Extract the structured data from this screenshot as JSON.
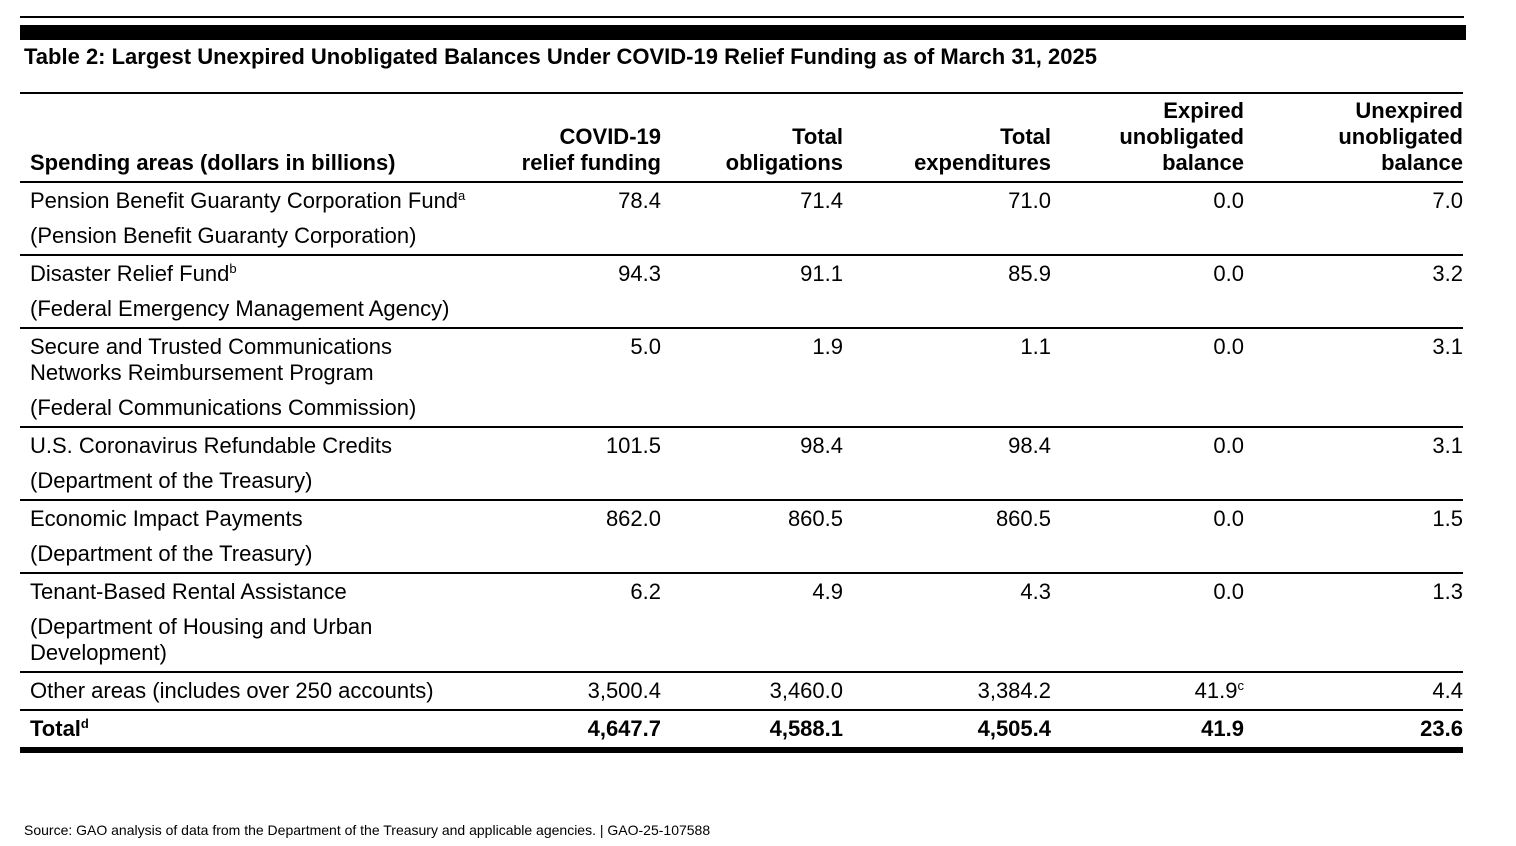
{
  "title": "Table 2: Largest Unexpired Unobligated Balances Under COVID-19 Relief Funding as of March 31, 2025",
  "headers": {
    "spending_areas": "Spending areas (dollars in billions)",
    "relief_funding": [
      "COVID-19",
      "relief funding"
    ],
    "obligations": [
      "Total",
      "obligations"
    ],
    "expenditures": [
      "Total",
      "expenditures"
    ],
    "expired": [
      "Expired",
      "unobligated",
      "balance"
    ],
    "unexpired": [
      "Unexpired",
      "unobligated",
      "balance"
    ]
  },
  "rows": [
    {
      "name": "Pension Benefit Guaranty Corporation Fund",
      "note": "a",
      "agency": "(Pension Benefit Guaranty Corporation)",
      "relief_funding": "78.4",
      "obligations": "71.4",
      "expenditures": "71.0",
      "expired": "0.0",
      "unexpired": "7.0"
    },
    {
      "name": "Disaster Relief Fund",
      "note": "b",
      "agency": "(Federal Emergency Management Agency)",
      "relief_funding": "94.3",
      "obligations": "91.1",
      "expenditures": "85.9",
      "expired": "0.0",
      "unexpired": "3.2"
    },
    {
      "name": "Secure and Trusted Communications Networks Reimbursement Program",
      "note": "",
      "agency": "(Federal Communications Commission)",
      "relief_funding": "5.0",
      "obligations": "1.9",
      "expenditures": "1.1",
      "expired": "0.0",
      "unexpired": "3.1"
    },
    {
      "name": "U.S. Coronavirus Refundable Credits",
      "note": "",
      "agency": "(Department of the Treasury)",
      "relief_funding": "101.5",
      "obligations": "98.4",
      "expenditures": "98.4",
      "expired": "0.0",
      "unexpired": "3.1"
    },
    {
      "name": "Economic Impact Payments",
      "note": "",
      "agency": "(Department of the Treasury)",
      "relief_funding": "862.0",
      "obligations": "860.5",
      "expenditures": "860.5",
      "expired": "0.0",
      "unexpired": "1.5"
    },
    {
      "name": "Tenant-Based Rental Assistance",
      "note": "",
      "agency": "(Department of Housing and Urban Development)",
      "relief_funding": "6.2",
      "obligations": "4.9",
      "expenditures": "4.3",
      "expired": "0.0",
      "unexpired": "1.3"
    },
    {
      "name": "Other areas (includes over 250 accounts)",
      "note": "",
      "agency": "",
      "relief_funding": "3,500.4",
      "obligations": "3,460.0",
      "expenditures": "3,384.2",
      "expired": "41.9",
      "expired_note": "c",
      "unexpired": "4.4"
    }
  ],
  "total": {
    "label": "Total",
    "note": "d",
    "relief_funding": "4,647.7",
    "obligations": "4,588.1",
    "expenditures": "4,505.4",
    "expired": "41.9",
    "unexpired": "23.6"
  },
  "source": "Source: GAO analysis of data from the Department of the Treasury and applicable agencies.  |  GAO-25-107588"
}
